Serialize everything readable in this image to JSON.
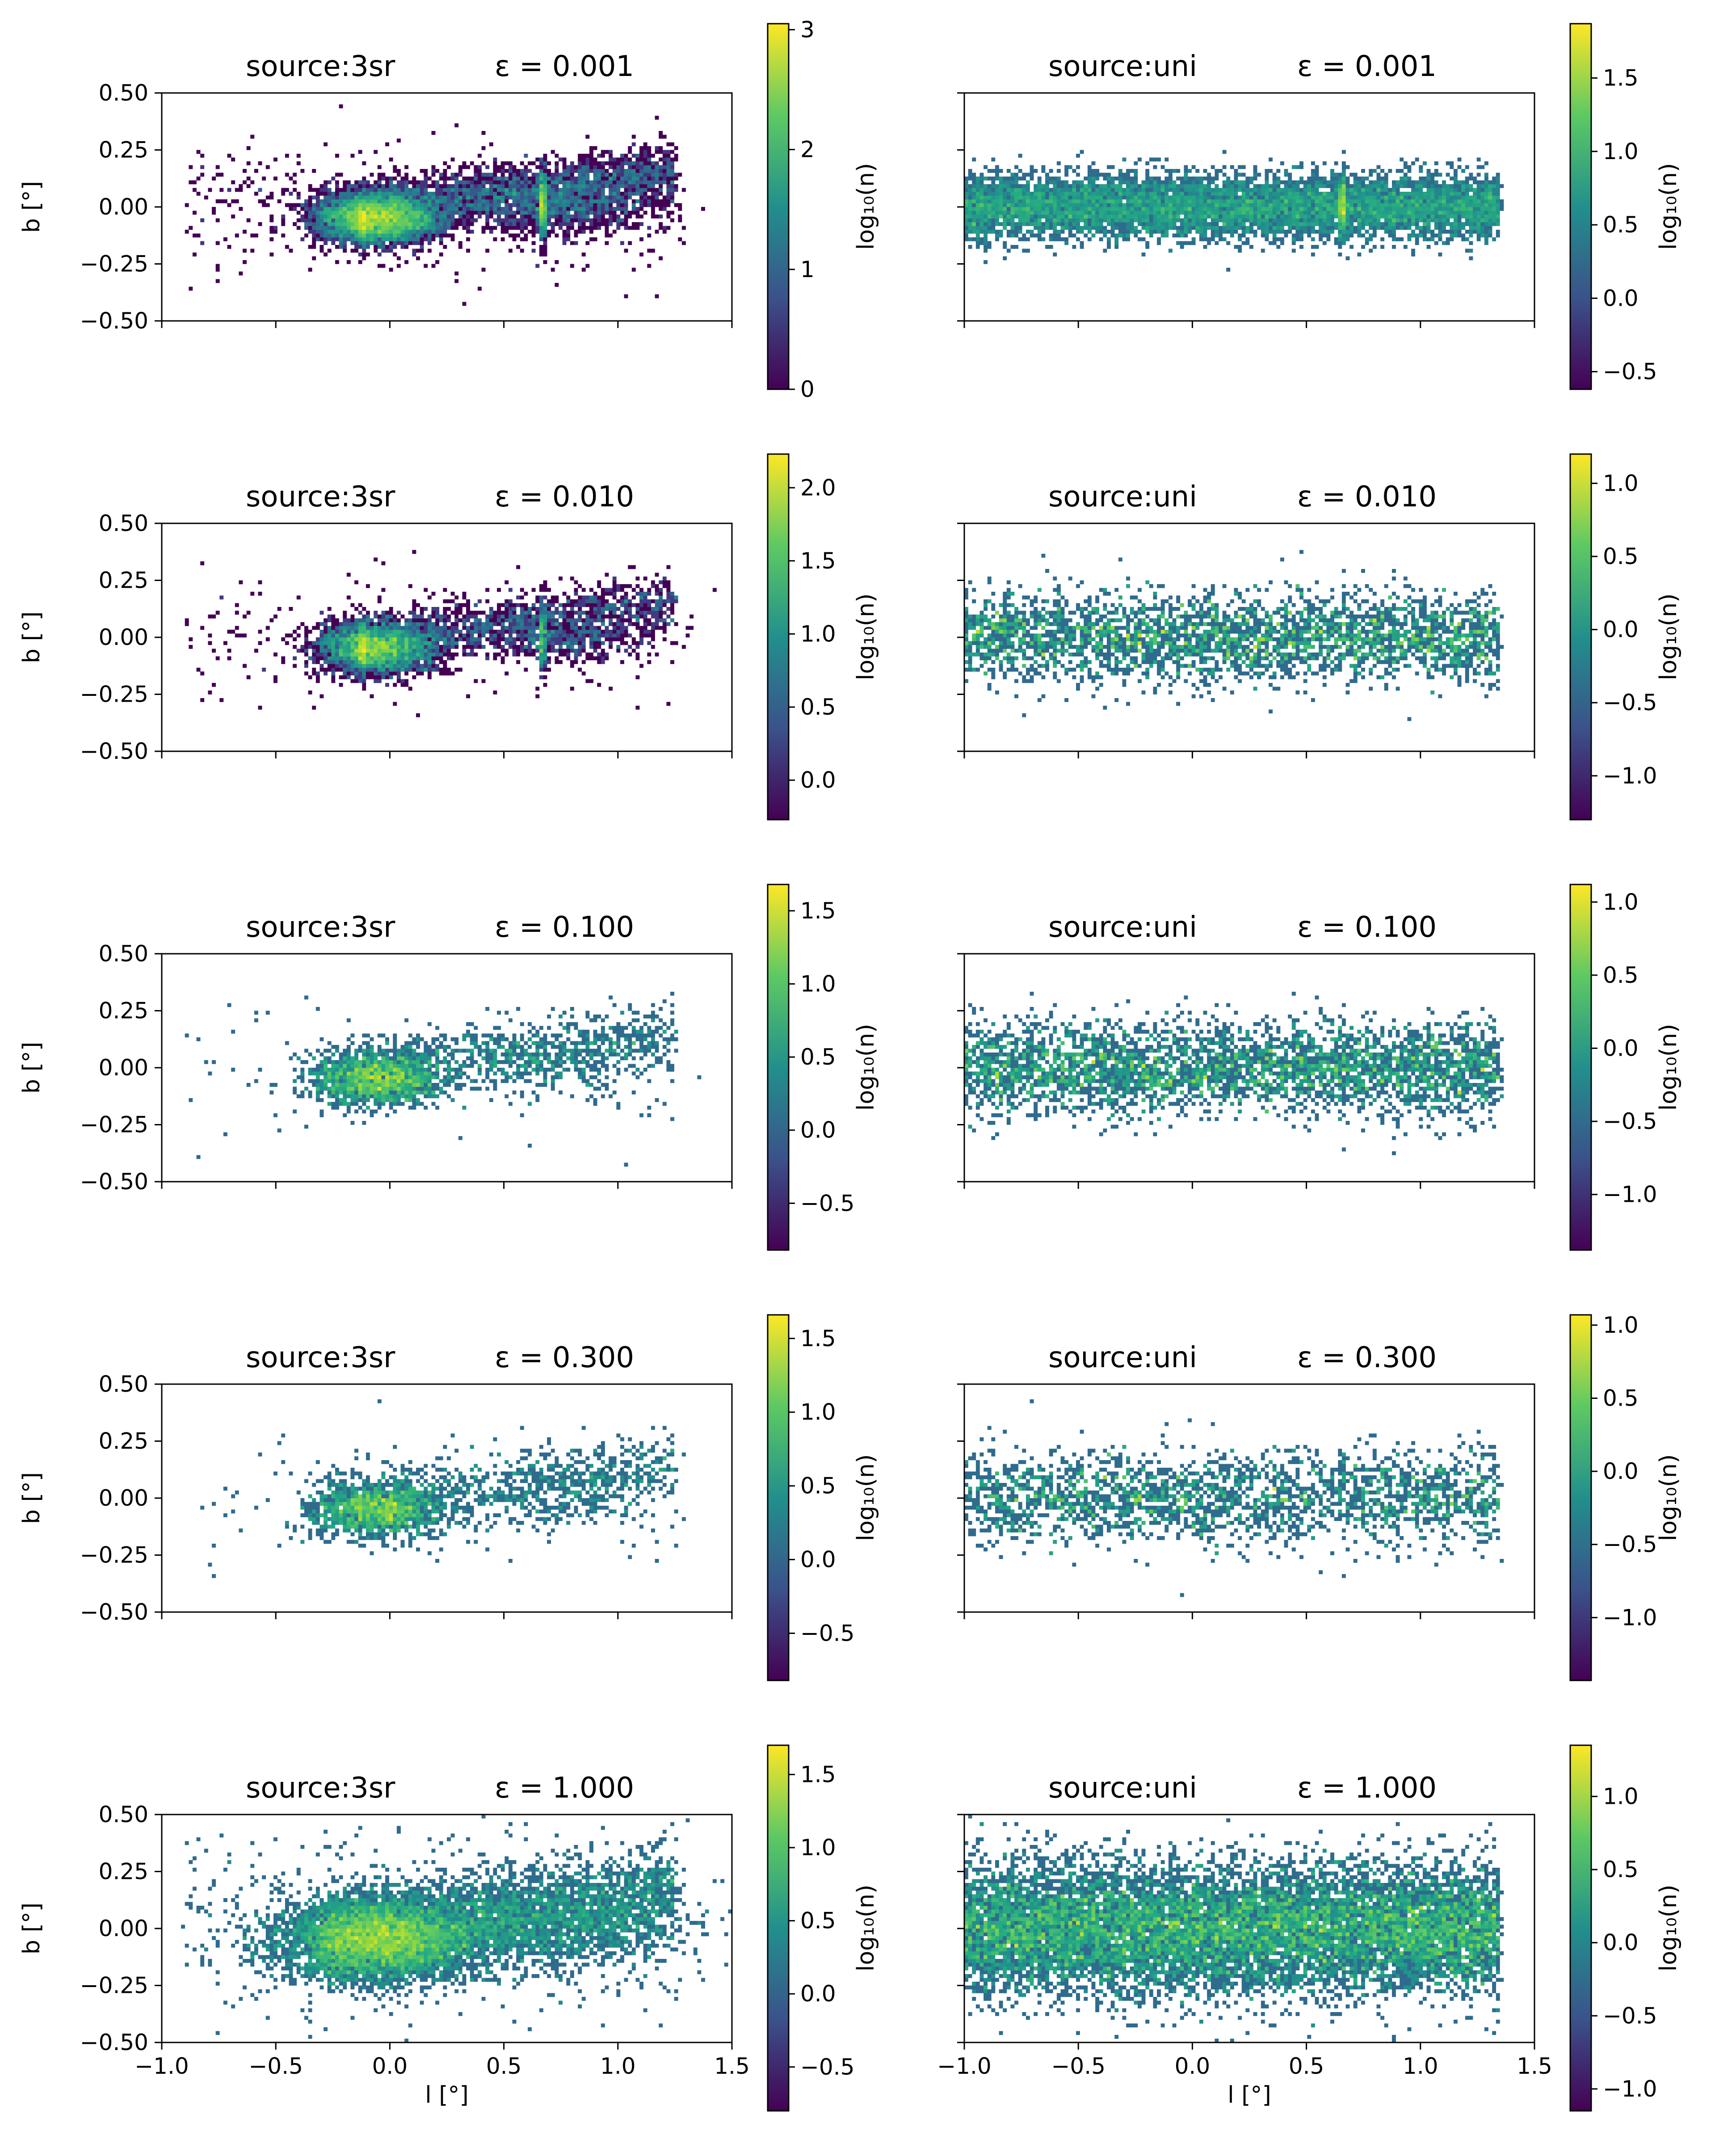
{
  "chart_data": {
    "type": "heatmap",
    "shared": {
      "xlabel": "l [°]",
      "ylabel": "b [°]",
      "xlim": [
        -1.0,
        1.5
      ],
      "ylim": [
        -0.5,
        0.5
      ],
      "xticks": [
        "−1.0",
        "−0.5",
        "0.0",
        "0.5",
        "1.0",
        "1.5"
      ],
      "yticks": [
        "0.50",
        "0.25",
        "0.00",
        "−0.25",
        "−0.50"
      ],
      "colorbar_label": "log₁₀(n)",
      "colormap": "viridis",
      "colormap_stops": [
        "#440154",
        "#3b528b",
        "#21908c",
        "#5dc963",
        "#fde725"
      ]
    },
    "panels": [
      {
        "row": 0,
        "col": 0,
        "source_label": "source:3sr",
        "epsilon_label": "ε = 0.001",
        "epsilon": 0.001,
        "clim": [
          0.0,
          3.05
        ],
        "cticks": [
          "3",
          "2",
          "1",
          "0"
        ],
        "ctick_values": [
          3,
          2,
          1,
          0
        ],
        "seed": 11
      },
      {
        "row": 0,
        "col": 1,
        "source_label": "source:uni",
        "epsilon_label": "ε = 0.001",
        "epsilon": 0.001,
        "clim": [
          -0.62,
          1.87
        ],
        "cticks": [
          "1.5",
          "1.0",
          "0.5",
          "0.0",
          "−0.5"
        ],
        "ctick_values": [
          1.5,
          1.0,
          0.5,
          0.0,
          -0.5
        ],
        "seed": 12
      },
      {
        "row": 1,
        "col": 0,
        "source_label": "source:3sr",
        "epsilon_label": "ε = 0.010",
        "epsilon": 0.01,
        "clim": [
          -0.27,
          2.23
        ],
        "cticks": [
          "2.0",
          "1.5",
          "1.0",
          "0.5",
          "0.0"
        ],
        "ctick_values": [
          2.0,
          1.5,
          1.0,
          0.5,
          0.0
        ],
        "seed": 21
      },
      {
        "row": 1,
        "col": 1,
        "source_label": "source:uni",
        "epsilon_label": "ε = 0.010",
        "epsilon": 0.01,
        "clim": [
          -1.3,
          1.2
        ],
        "cticks": [
          "1.0",
          "0.5",
          "0.0",
          "−0.5",
          "−1.0"
        ],
        "ctick_values": [
          1.0,
          0.5,
          0.0,
          -0.5,
          -1.0
        ],
        "seed": 22
      },
      {
        "row": 2,
        "col": 0,
        "source_label": "source:3sr",
        "epsilon_label": "ε = 0.100",
        "epsilon": 0.1,
        "clim": [
          -0.82,
          1.68
        ],
        "cticks": [
          "1.5",
          "1.0",
          "0.5",
          "0.0",
          "−0.5"
        ],
        "ctick_values": [
          1.5,
          1.0,
          0.5,
          0.0,
          -0.5
        ],
        "seed": 31
      },
      {
        "row": 2,
        "col": 1,
        "source_label": "source:uni",
        "epsilon_label": "ε = 0.100",
        "epsilon": 0.1,
        "clim": [
          -1.38,
          1.12
        ],
        "cticks": [
          "1.0",
          "0.5",
          "0.0",
          "−0.5",
          "−1.0"
        ],
        "ctick_values": [
          1.0,
          0.5,
          0.0,
          -0.5,
          -1.0
        ],
        "seed": 32
      },
      {
        "row": 3,
        "col": 0,
        "source_label": "source:3sr",
        "epsilon_label": "ε = 0.300",
        "epsilon": 0.3,
        "clim": [
          -0.82,
          1.66
        ],
        "cticks": [
          "1.5",
          "1.0",
          "0.5",
          "0.0",
          "−0.5"
        ],
        "ctick_values": [
          1.5,
          1.0,
          0.5,
          0.0,
          -0.5
        ],
        "seed": 41
      },
      {
        "row": 3,
        "col": 1,
        "source_label": "source:uni",
        "epsilon_label": "ε = 0.300",
        "epsilon": 0.3,
        "clim": [
          -1.43,
          1.07
        ],
        "cticks": [
          "1.0",
          "0.5",
          "0.0",
          "−0.5",
          "−1.0"
        ],
        "ctick_values": [
          1.0,
          0.5,
          0.0,
          -0.5,
          -1.0
        ],
        "seed": 42
      },
      {
        "row": 4,
        "col": 0,
        "source_label": "source:3sr",
        "epsilon_label": "ε = 1.000",
        "epsilon": 1.0,
        "clim": [
          -0.8,
          1.7
        ],
        "cticks": [
          "1.5",
          "1.0",
          "0.5",
          "0.0",
          "−0.5"
        ],
        "ctick_values": [
          1.5,
          1.0,
          0.5,
          0.0,
          -0.5
        ],
        "seed": 51
      },
      {
        "row": 4,
        "col": 1,
        "source_label": "source:uni",
        "epsilon_label": "ε = 1.000",
        "epsilon": 1.0,
        "clim": [
          -1.15,
          1.35
        ],
        "cticks": [
          "1.0",
          "0.5",
          "0.0",
          "−0.5",
          "−1.0"
        ],
        "ctick_values": [
          1.0,
          0.5,
          0.0,
          -0.5,
          -1.0
        ],
        "seed": 52
      }
    ],
    "features": {
      "3sr": {
        "main_peak_l": -0.05,
        "main_peak_b": -0.05,
        "secondary_peak_l": 0.65,
        "secondary_peak_b": 0.0,
        "stripe_l": 0.67
      },
      "uni": {
        "core_l_range": [
          -0.3,
          1.2
        ],
        "band_b": 0.0,
        "stripe_l": 0.66
      }
    }
  }
}
